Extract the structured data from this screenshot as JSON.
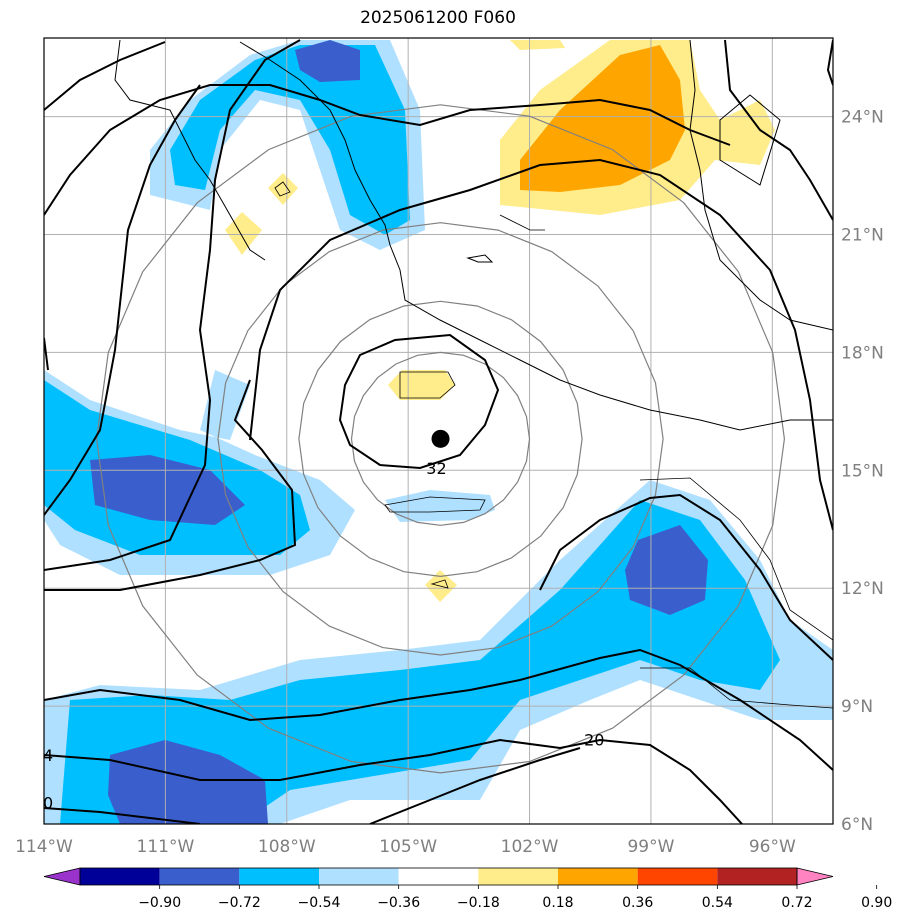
{
  "title": "2025061200 F060",
  "map": {
    "lon_range": [
      -114,
      -94.5
    ],
    "lat_range": [
      6,
      26
    ],
    "lon_ticks": [
      {
        "value": -114,
        "label": "114°W"
      },
      {
        "value": -111,
        "label": "111°W"
      },
      {
        "value": -108,
        "label": "108°W"
      },
      {
        "value": -105,
        "label": "105°W"
      },
      {
        "value": -102,
        "label": "102°W"
      },
      {
        "value": -99,
        "label": "99°W"
      },
      {
        "value": -96,
        "label": "96°W"
      }
    ],
    "lat_ticks": [
      {
        "value": 6,
        "label": "6°N"
      },
      {
        "value": 9,
        "label": "9°N"
      },
      {
        "value": 12,
        "label": "12°N"
      },
      {
        "value": 15,
        "label": "15°N"
      },
      {
        "value": 18,
        "label": "18°N"
      },
      {
        "value": 21,
        "label": "21°N"
      },
      {
        "value": 24,
        "label": "24°N"
      }
    ],
    "storm_center": {
      "lon": -104.2,
      "lat": 15.8
    },
    "contour_labels": [
      {
        "text": "32",
        "lon": -104.3,
        "lat": 14.9
      },
      {
        "text": "20",
        "lon": -100.4,
        "lat": 8.0
      },
      {
        "text": "4",
        "lon": -113.9,
        "lat": 7.6
      },
      {
        "text": "0",
        "lon": -113.9,
        "lat": 6.4
      }
    ],
    "range_rings_deg": [
      2.2,
      3.5,
      5.5,
      8.5
    ]
  },
  "colorbar": {
    "labels": [
      "−0.90",
      "−0.72",
      "−0.54",
      "−0.36",
      "−0.18",
      "0.18",
      "0.36",
      "0.54",
      "0.72",
      "0.90"
    ],
    "colors": [
      "#9933cc",
      "#000099",
      "#3a5fcd",
      "#00bfff",
      "#b0e0ff",
      "#ffffff",
      "#ffec8b",
      "#ffa500",
      "#ff4500",
      "#b22222",
      "#ff83c0"
    ]
  }
}
